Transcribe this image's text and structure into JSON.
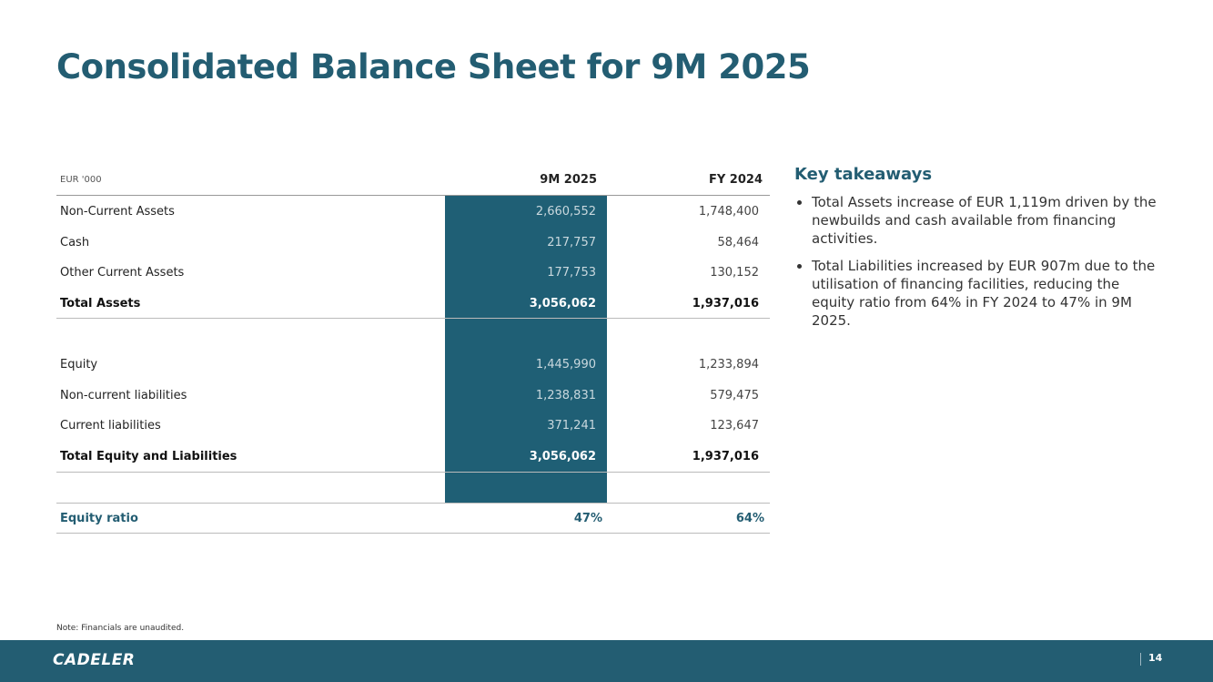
{
  "header": {
    "title": "Consolidated Balance Sheet for 9M 2025"
  },
  "table": {
    "unit": "EUR '000",
    "columns": [
      "9M 2025",
      "FY 2024"
    ],
    "assets": {
      "rows": [
        [
          "Non-Current Assets",
          "2,660,552",
          "1,748,400"
        ],
        [
          "Cash",
          "217,757",
          "58,464"
        ],
        [
          "Other Current Assets",
          "177,753",
          "130,152"
        ]
      ],
      "total": [
        "Total Assets",
        "3,056,062",
        "1,937,016"
      ]
    },
    "liabilities": {
      "rows": [
        [
          "Equity",
          "1,445,990",
          "1,233,894"
        ],
        [
          "Non-current liabilities",
          "1,238,831",
          "579,475"
        ],
        [
          "Current liabilities",
          "371,241",
          "123,647"
        ]
      ],
      "total": [
        "Total Equity and Liabilities",
        "3,056,062",
        "1,937,016"
      ]
    },
    "ratio": [
      "Equity ratio",
      "47%",
      "64%"
    ]
  },
  "takeaways": {
    "title": "Key takeaways",
    "bullets": [
      "Total Assets increase of EUR 1,119m driven by the newbuilds and cash available from financing activities.",
      "Total Liabilities increased by EUR 907m due to the utilisation of financing facilities, reducing the equity ratio from 64% in FY 2024 to 47% in 9M 2025."
    ]
  },
  "footer": {
    "note": "Note: Financials are unaudited.",
    "logo": "CADELER",
    "page": "14"
  }
}
